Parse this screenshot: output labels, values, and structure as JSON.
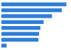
{
  "chart_data": {
    "type": "bar",
    "orientation": "horizontal",
    "values": [
      100,
      93,
      78,
      65,
      60,
      58,
      57,
      8
    ],
    "color": "#2f7ed8",
    "xlim": [
      0,
      105
    ],
    "tick_labels": false
  }
}
